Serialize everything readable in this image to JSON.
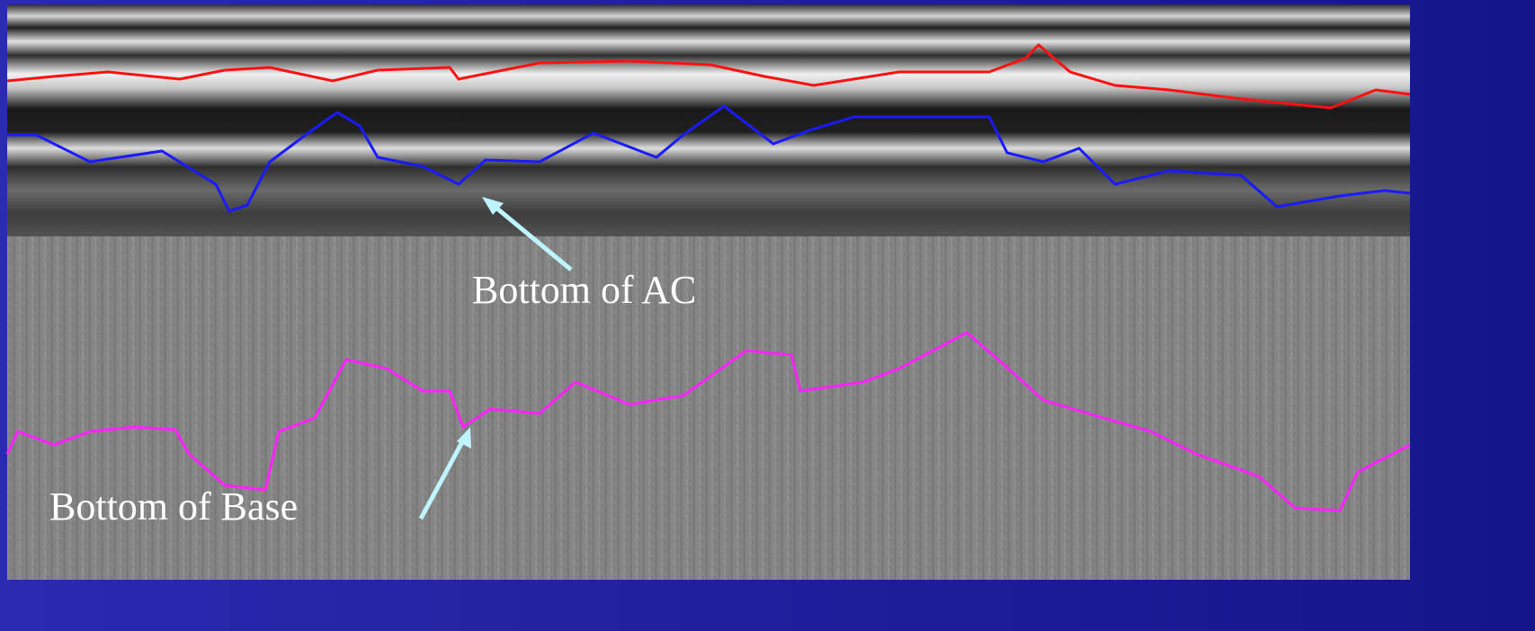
{
  "annotations": {
    "bottom_ac": "Bottom of AC",
    "bottom_base": "Bottom of Base"
  }
}
